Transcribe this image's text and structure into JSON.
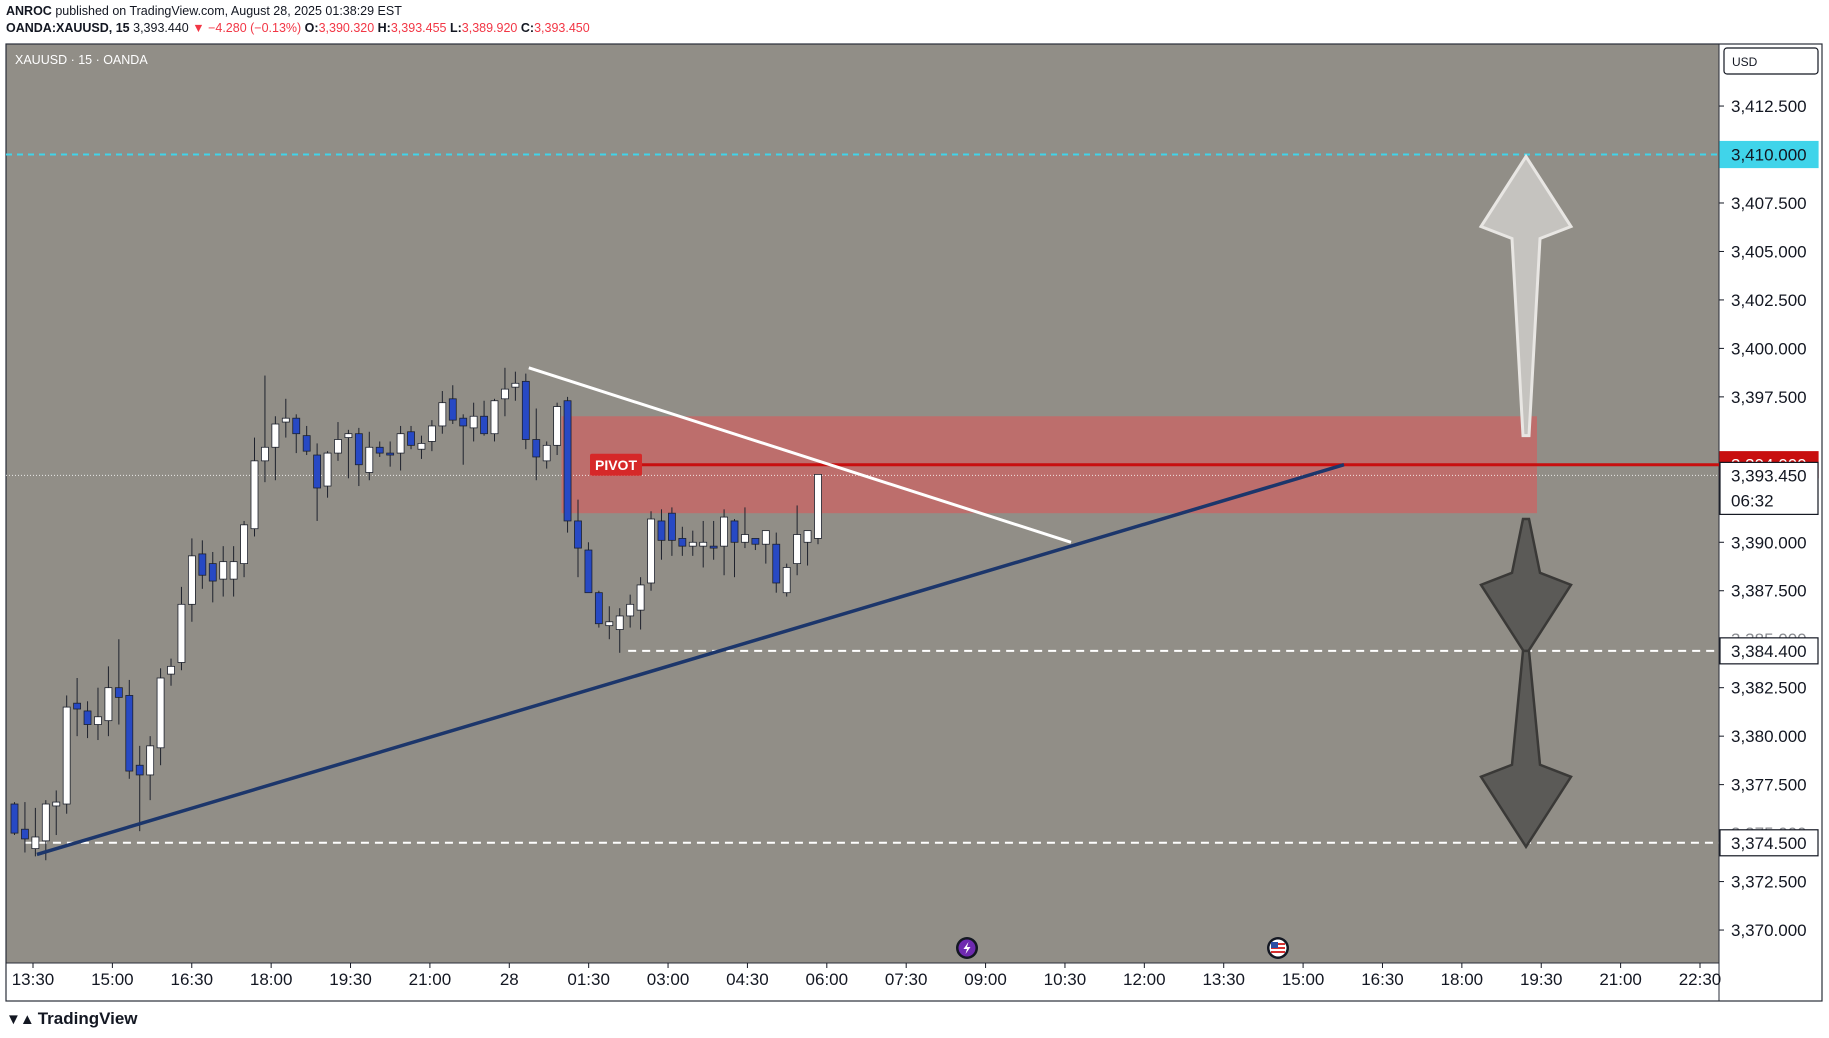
{
  "header": {
    "author": "ANROC",
    "published_text": "published on TradingView.com, August 28, 2025 01:38:29 EST",
    "symbol_line": "OANDA:XAUUSD, 15",
    "last_price": "3,393.440",
    "change": "▼ −4.280 (−0.13%)",
    "o_label": "O:",
    "o_value": "3,390.320",
    "h_label": "H:",
    "h_value": "3,393.455",
    "l_label": "L:",
    "l_value": "3,389.920",
    "c_label": "C:",
    "c_value": "3,393.450"
  },
  "footer": {
    "brand": "TradingView",
    "logo_icon": "tradingview-logo-icon"
  },
  "chart_data": {
    "type": "candlestick",
    "symbol_label": "XAUUSD · 15 · OANDA",
    "currency": "USD",
    "ylim": [
      3368.3,
      3415.7
    ],
    "y_ticks": [
      3412.5,
      3407.5,
      3405.0,
      3402.5,
      3400.0,
      3397.5,
      3390.0,
      3387.5,
      3382.5,
      3380.0,
      3377.5,
      3372.5,
      3370.0
    ],
    "y_tick_labels": [
      "3,412.500",
      "3,407.500",
      "3,405.000",
      "3,402.500",
      "3,400.000",
      "3,397.500",
      "3,390.000",
      "3,387.500",
      "3,382.500",
      "3,380.000",
      "3,377.500",
      "3,372.500",
      "3,370.000"
    ],
    "y_hidden_tick_labels": [
      "3,385.000",
      "3,375.000"
    ],
    "x_tick_labels": [
      "13:30",
      "15:00",
      "16:30",
      "18:00",
      "19:30",
      "21:00",
      "28",
      "01:30",
      "03:00",
      "04:30",
      "06:00",
      "07:30",
      "09:00",
      "10:30",
      "12:00",
      "13:30",
      "15:00",
      "16:30",
      "18:00",
      "19:30",
      "21:00",
      "22:30"
    ],
    "candles": [
      [
        3376.5,
        3376.6,
        3374.9,
        3375.0
      ],
      [
        3375.2,
        3376.6,
        3374.0,
        3374.7
      ],
      [
        3374.2,
        3376.3,
        3373.8,
        3374.8
      ],
      [
        3374.6,
        3376.7,
        3373.6,
        3376.5
      ],
      [
        3376.4,
        3377.2,
        3374.9,
        3376.6
      ],
      [
        3376.5,
        3382.1,
        3376.0,
        3381.5
      ],
      [
        3381.7,
        3383.0,
        3380.0,
        3381.4
      ],
      [
        3381.3,
        3381.8,
        3379.9,
        3380.6
      ],
      [
        3380.6,
        3382.5,
        3379.8,
        3381.0
      ],
      [
        3380.8,
        3383.6,
        3380.0,
        3382.5
      ],
      [
        3382.5,
        3385.0,
        3380.6,
        3382.0
      ],
      [
        3382.1,
        3382.9,
        3377.8,
        3378.2
      ],
      [
        3378.5,
        3379.5,
        3375.1,
        3378.0
      ],
      [
        3378.0,
        3380.0,
        3376.7,
        3379.5
      ],
      [
        3379.4,
        3383.5,
        3378.5,
        3383.0
      ],
      [
        3383.2,
        3384.0,
        3382.6,
        3383.6
      ],
      [
        3383.8,
        3387.7,
        3383.4,
        3386.8
      ],
      [
        3386.8,
        3390.2,
        3385.9,
        3389.3
      ],
      [
        3389.4,
        3390.1,
        3387.6,
        3388.3
      ],
      [
        3388.9,
        3389.5,
        3386.9,
        3388.0
      ],
      [
        3388.1,
        3389.8,
        3387.2,
        3389.0
      ],
      [
        3388.1,
        3389.8,
        3387.2,
        3389.0
      ],
      [
        3388.9,
        3391.1,
        3388.2,
        3390.9
      ],
      [
        3390.7,
        3395.4,
        3390.3,
        3394.2
      ],
      [
        3394.2,
        3398.6,
        3393.1,
        3394.9
      ],
      [
        3394.9,
        3396.5,
        3393.2,
        3396.1
      ],
      [
        3396.2,
        3397.4,
        3395.4,
        3396.4
      ],
      [
        3396.4,
        3396.6,
        3394.6,
        3395.6
      ],
      [
        3395.5,
        3396.0,
        3394.5,
        3394.7
      ],
      [
        3394.5,
        3395.1,
        3391.1,
        3392.8
      ],
      [
        3392.9,
        3394.7,
        3392.3,
        3394.6
      ],
      [
        3394.6,
        3396.2,
        3394.2,
        3395.3
      ],
      [
        3395.4,
        3395.8,
        3393.3,
        3395.6
      ],
      [
        3395.6,
        3395.9,
        3392.9,
        3394.0
      ],
      [
        3393.6,
        3395.7,
        3393.2,
        3394.9
      ],
      [
        3394.9,
        3395.2,
        3394.4,
        3394.6
      ],
      [
        3394.6,
        3395.2,
        3393.9,
        3394.5
      ],
      [
        3394.6,
        3396.0,
        3393.7,
        3395.6
      ],
      [
        3395.7,
        3396.0,
        3394.8,
        3395.0
      ],
      [
        3394.8,
        3395.5,
        3394.3,
        3395.1
      ],
      [
        3395.2,
        3396.3,
        3394.7,
        3396.0
      ],
      [
        3396.0,
        3397.8,
        3395.6,
        3397.2
      ],
      [
        3397.4,
        3398.1,
        3396.1,
        3396.3
      ],
      [
        3396.4,
        3396.6,
        3394.0,
        3396.0
      ],
      [
        3395.9,
        3397.2,
        3395.2,
        3396.5
      ],
      [
        3396.5,
        3397.3,
        3395.5,
        3395.6
      ],
      [
        3395.6,
        3397.4,
        3395.2,
        3397.3
      ],
      [
        3397.4,
        3399.0,
        3396.5,
        3397.9
      ],
      [
        3398.0,
        3398.8,
        3397.3,
        3398.2
      ],
      [
        3398.3,
        3398.7,
        3394.8,
        3395.3
      ],
      [
        3395.3,
        3396.9,
        3393.2,
        3394.4
      ],
      [
        3394.2,
        3395.2,
        3393.8,
        3395.0
      ],
      [
        3395.0,
        3397.2,
        3394.5,
        3397.0
      ],
      [
        3397.3,
        3397.5,
        3390.5,
        3391.1
      ],
      [
        3391.1,
        3392.2,
        3388.2,
        3389.7
      ],
      [
        3389.6,
        3390.0,
        3387.4,
        3387.4
      ],
      [
        3387.4,
        3387.5,
        3385.6,
        3385.8
      ],
      [
        3385.7,
        3386.7,
        3385.0,
        3385.9
      ],
      [
        3385.5,
        3386.6,
        3384.3,
        3386.2
      ],
      [
        3386.2,
        3387.3,
        3385.6,
        3386.8
      ],
      [
        3386.5,
        3388.2,
        3385.5,
        3387.8
      ],
      [
        3387.9,
        3391.6,
        3387.5,
        3391.2
      ],
      [
        3391.1,
        3391.7,
        3389.1,
        3390.1
      ],
      [
        3391.5,
        3391.8,
        3389.3,
        3390.1
      ],
      [
        3390.2,
        3390.8,
        3389.3,
        3389.8
      ],
      [
        3389.8,
        3390.6,
        3389.3,
        3390.0
      ],
      [
        3389.8,
        3391.1,
        3388.7,
        3390.0
      ],
      [
        3389.8,
        3391.1,
        3389.1,
        3389.7
      ],
      [
        3389.8,
        3391.7,
        3388.3,
        3391.3
      ],
      [
        3391.1,
        3391.2,
        3388.2,
        3390.0
      ],
      [
        3390.0,
        3391.8,
        3389.7,
        3390.4
      ],
      [
        3390.2,
        3390.2,
        3389.6,
        3389.9
      ],
      [
        3389.9,
        3390.6,
        3388.9,
        3390.6
      ],
      [
        3389.9,
        3390.5,
        3387.4,
        3387.9
      ],
      [
        3387.4,
        3388.9,
        3387.2,
        3388.7
      ],
      [
        3388.9,
        3391.9,
        3388.3,
        3390.4
      ],
      [
        3390.0,
        3390.4,
        3388.8,
        3390.6
      ],
      [
        3390.2,
        3393.5,
        3389.9,
        3393.5
      ]
    ],
    "drawings": {
      "resistance_level": 3410.0,
      "resistance_label": "3,410.000",
      "pivot_label": "PIVOT",
      "pivot_price": 3394.0,
      "pivot_price_label": "3,394.000",
      "pivot_zone": [
        3391.5,
        3396.5
      ],
      "support_1": 3384.4,
      "support_1_label": "3,384.400",
      "support_2": 3374.5,
      "support_2_label": "3,374.500",
      "current_price": 3393.45,
      "current_price_label": "3,393.450",
      "countdown": "06:32"
    },
    "event_icons": [
      "lightning-icon",
      "us-flag-icon"
    ],
    "colors": {
      "background": "#918e87",
      "bull": "#ffffff",
      "bear": "#2749c4",
      "resistance": "#40d4ea",
      "pivot": "#c80f0f",
      "zone": "#cf6262",
      "trendline": "#1c366b",
      "downline": "#ffffff"
    }
  }
}
